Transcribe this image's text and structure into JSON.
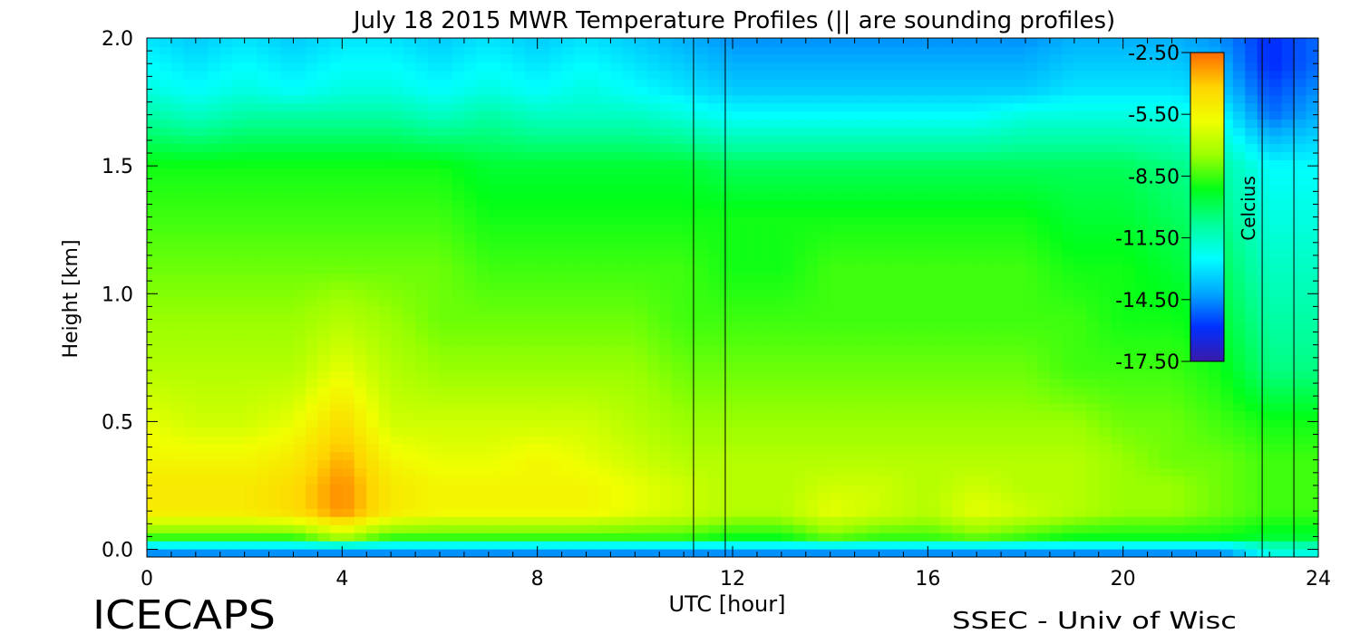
{
  "chart_data": {
    "type": "heatmap",
    "title": "July 18 2015 MWR Temperature Profiles (|| are sounding profiles)",
    "xlabel": "UTC [hour]",
    "ylabel": "Height [km]",
    "xlim": [
      0,
      24
    ],
    "ylim": [
      -0.03,
      2.0
    ],
    "x_ticks": [
      "0",
      "4",
      "8",
      "12",
      "16",
      "20",
      "24"
    ],
    "x_tick_values": [
      0,
      4,
      8,
      12,
      16,
      20,
      24
    ],
    "y_ticks": [
      "0.0",
      "0.5",
      "1.0",
      "1.5",
      "2.0"
    ],
    "y_tick_values": [
      0.0,
      0.5,
      1.0,
      1.5,
      2.0
    ],
    "colorbar": {
      "label": "Celcius",
      "min": -17.5,
      "max": -2.5,
      "ticks": [
        "-2.50",
        "-5.50",
        "-8.50",
        "-11.50",
        "-14.50",
        "-17.50"
      ],
      "tick_values": [
        -2.5,
        -5.5,
        -8.5,
        -11.5,
        -14.5,
        -17.5
      ],
      "colors": [
        "#ff6a00",
        "#ffd400",
        "#f0ff00",
        "#9aff00",
        "#00ff18",
        "#00ff9a",
        "#00ffff",
        "#00a8ff",
        "#0030ff",
        "#3a1aa8"
      ]
    },
    "sounding_times": [
      11.2,
      11.85,
      22.85,
      23.5
    ],
    "temperature_field": {
      "heights_km": [
        0.0,
        0.05,
        0.15,
        0.25,
        0.35,
        0.5,
        0.7,
        0.9,
        1.1,
        1.3,
        1.5,
        1.7,
        1.8,
        1.9,
        2.0
      ],
      "hours": [
        0,
        1,
        2,
        3,
        4,
        5,
        6,
        7,
        8,
        9,
        10,
        11,
        12,
        13,
        14,
        15,
        16,
        17,
        18,
        19,
        20,
        21,
        22,
        23,
        24
      ],
      "values": [
        [
          -14.5,
          -14.5,
          -14.5,
          -14.5,
          -14.5,
          -14.5,
          -14.5,
          -14.5,
          -14.5,
          -14.5,
          -14.5,
          -14.5,
          -14.5,
          -14.5,
          -14.5,
          -14.5,
          -14.5,
          -14.5,
          -14.5,
          -14.5,
          -14.5,
          -14.5,
          -14.5,
          -12.0,
          -12.0
        ],
        [
          -8.5,
          -8.5,
          -8.5,
          -8.5,
          -7.0,
          -8.5,
          -8.5,
          -8.5,
          -8.5,
          -8.5,
          -8.5,
          -8.5,
          -9.0,
          -9.0,
          -8.0,
          -8.5,
          -8.5,
          -8.0,
          -8.5,
          -9.0,
          -9.0,
          -9.0,
          -9.0,
          -9.5,
          -9.5
        ],
        [
          -5.0,
          -5.0,
          -5.0,
          -4.5,
          -3.0,
          -5.0,
          -5.5,
          -5.5,
          -5.5,
          -5.5,
          -6.0,
          -6.5,
          -7.0,
          -7.0,
          -6.0,
          -6.5,
          -7.0,
          -6.0,
          -6.5,
          -7.0,
          -7.5,
          -7.5,
          -8.0,
          -8.5,
          -8.5
        ],
        [
          -5.0,
          -5.0,
          -5.0,
          -4.5,
          -3.0,
          -5.0,
          -5.5,
          -5.5,
          -5.5,
          -5.5,
          -6.0,
          -6.5,
          -7.0,
          -7.0,
          -6.5,
          -6.5,
          -7.0,
          -6.5,
          -7.0,
          -7.0,
          -7.5,
          -7.5,
          -8.0,
          -8.5,
          -8.5
        ],
        [
          -5.5,
          -5.5,
          -5.5,
          -5.0,
          -3.5,
          -5.5,
          -6.0,
          -6.0,
          -5.5,
          -6.0,
          -6.5,
          -7.0,
          -7.0,
          -7.0,
          -7.0,
          -7.0,
          -7.0,
          -7.0,
          -7.0,
          -7.0,
          -7.5,
          -8.0,
          -8.0,
          -8.5,
          -8.5
        ],
        [
          -6.0,
          -6.5,
          -6.5,
          -6.0,
          -4.5,
          -6.5,
          -6.5,
          -6.5,
          -6.5,
          -6.5,
          -7.0,
          -7.5,
          -7.5,
          -7.5,
          -7.5,
          -7.5,
          -7.5,
          -7.5,
          -7.5,
          -7.5,
          -8.0,
          -8.0,
          -8.5,
          -9.0,
          -9.0
        ],
        [
          -7.0,
          -7.0,
          -7.0,
          -7.0,
          -6.0,
          -7.0,
          -7.5,
          -7.5,
          -7.5,
          -7.5,
          -7.5,
          -8.0,
          -8.0,
          -8.0,
          -8.0,
          -8.0,
          -8.0,
          -8.0,
          -8.0,
          -8.5,
          -8.5,
          -8.5,
          -9.0,
          -10.5,
          -10.5
        ],
        [
          -7.5,
          -7.5,
          -7.5,
          -7.5,
          -7.0,
          -7.5,
          -8.0,
          -8.0,
          -8.0,
          -8.0,
          -8.0,
          -8.5,
          -8.5,
          -8.5,
          -8.5,
          -8.5,
          -8.5,
          -8.5,
          -8.5,
          -8.5,
          -9.0,
          -9.0,
          -9.5,
          -11.0,
          -11.0
        ],
        [
          -8.0,
          -8.0,
          -8.0,
          -8.0,
          -8.0,
          -8.0,
          -8.0,
          -8.5,
          -8.5,
          -8.5,
          -8.5,
          -8.5,
          -9.0,
          -9.0,
          -8.5,
          -8.5,
          -8.5,
          -8.5,
          -8.5,
          -9.0,
          -9.0,
          -9.5,
          -10.0,
          -11.5,
          -11.5
        ],
        [
          -8.5,
          -8.5,
          -8.5,
          -8.5,
          -8.5,
          -8.5,
          -8.5,
          -9.0,
          -9.0,
          -9.0,
          -9.0,
          -9.0,
          -9.0,
          -9.0,
          -9.0,
          -9.0,
          -9.0,
          -9.0,
          -9.0,
          -9.5,
          -9.5,
          -10.0,
          -10.5,
          -12.0,
          -12.0
        ],
        [
          -9.0,
          -9.0,
          -9.0,
          -9.0,
          -9.0,
          -9.0,
          -9.0,
          -9.5,
          -9.5,
          -9.5,
          -9.5,
          -9.5,
          -10.0,
          -10.0,
          -10.0,
          -10.0,
          -10.0,
          -10.0,
          -10.0,
          -10.0,
          -10.0,
          -10.5,
          -11.0,
          -12.5,
          -12.5
        ],
        [
          -11.0,
          -11.5,
          -11.0,
          -11.0,
          -11.0,
          -11.0,
          -11.5,
          -11.0,
          -11.5,
          -11.5,
          -11.5,
          -12.0,
          -12.5,
          -12.5,
          -12.5,
          -12.5,
          -12.5,
          -12.5,
          -12.0,
          -12.0,
          -12.0,
          -12.0,
          -12.5,
          -15.0,
          -14.0
        ],
        [
          -12.0,
          -12.5,
          -12.0,
          -12.5,
          -12.0,
          -12.0,
          -12.5,
          -12.0,
          -12.5,
          -12.0,
          -12.5,
          -13.0,
          -13.5,
          -13.5,
          -13.5,
          -13.5,
          -13.5,
          -13.5,
          -13.5,
          -13.0,
          -13.0,
          -13.0,
          -13.5,
          -15.5,
          -14.5
        ],
        [
          -12.5,
          -13.0,
          -12.5,
          -13.0,
          -12.5,
          -12.5,
          -13.0,
          -12.5,
          -13.0,
          -12.5,
          -13.0,
          -13.5,
          -14.0,
          -14.0,
          -14.0,
          -14.0,
          -14.0,
          -14.0,
          -14.0,
          -13.5,
          -13.5,
          -13.5,
          -14.0,
          -16.0,
          -15.0
        ],
        [
          -13.0,
          -13.5,
          -13.0,
          -13.5,
          -13.0,
          -13.0,
          -13.5,
          -13.0,
          -13.5,
          -13.0,
          -13.5,
          -14.0,
          -14.5,
          -14.5,
          -14.5,
          -14.5,
          -14.5,
          -14.5,
          -14.5,
          -14.0,
          -14.0,
          -14.0,
          -14.5,
          -16.0,
          -15.0
        ]
      ]
    }
  },
  "footer": {
    "left_text": "ICECAPS",
    "right_text": "SSEC - Univ of Wisc"
  }
}
